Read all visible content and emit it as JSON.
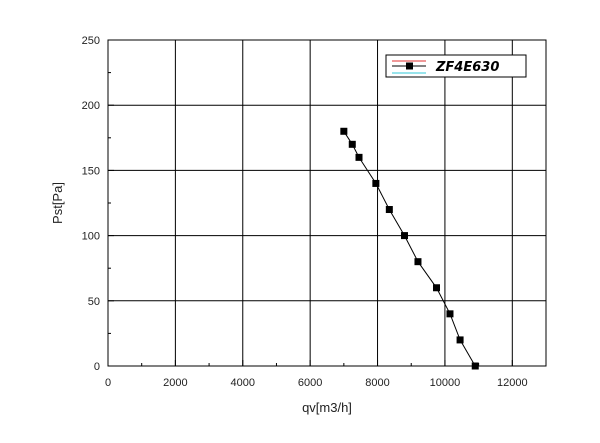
{
  "chart_data": {
    "type": "line",
    "title": "",
    "xlabel": "qv[m3/h]",
    "ylabel": "Pst[Pa]",
    "xlim": [
      0,
      13000
    ],
    "ylim": [
      0,
      250
    ],
    "xticks": [
      0,
      2000,
      4000,
      6000,
      8000,
      10000,
      12000
    ],
    "yticks": [
      0,
      50,
      100,
      150,
      200,
      250
    ],
    "grid": true,
    "legend_position": "top-right",
    "series": [
      {
        "name": "ZF4E630",
        "marker": "square",
        "color": "#000000",
        "x": [
          7000,
          7250,
          7450,
          7950,
          8350,
          8800,
          9200,
          9750,
          10150,
          10450,
          10900
        ],
        "y": [
          180,
          170,
          160,
          140,
          120,
          100,
          80,
          60,
          40,
          20,
          0
        ]
      }
    ]
  }
}
